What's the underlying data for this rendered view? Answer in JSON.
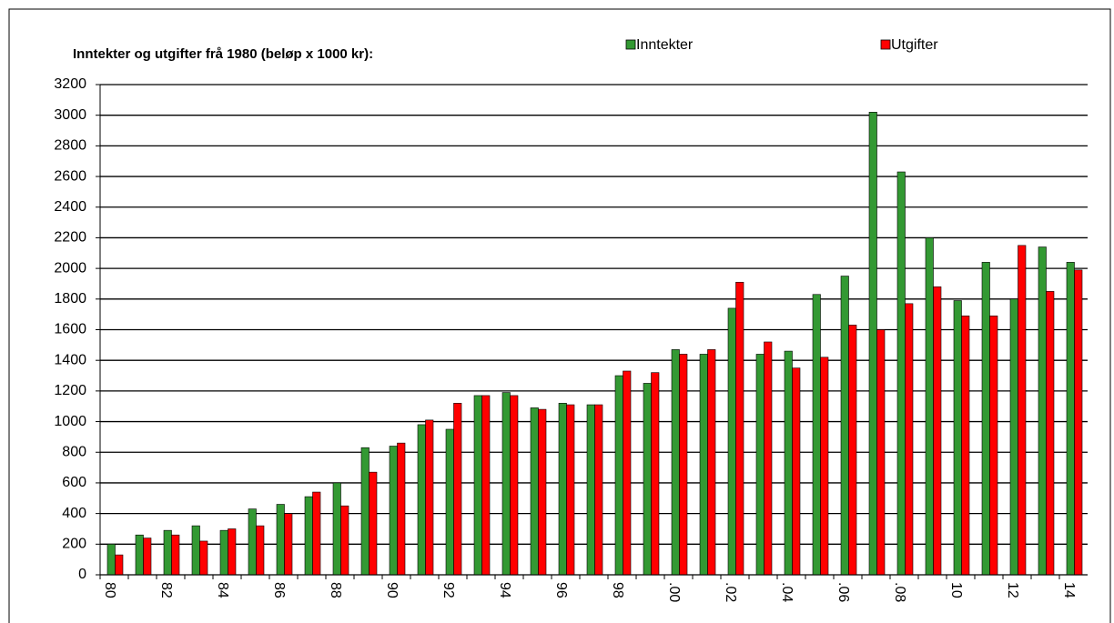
{
  "chart_data": {
    "type": "bar",
    "title": "Inntekter og utgifter frå 1980 (beløp x 1000 kr):",
    "categories": [
      "80",
      null,
      "82",
      null,
      "84",
      null,
      "86",
      null,
      "88",
      null,
      "90",
      null,
      "92",
      null,
      "94",
      null,
      "96",
      null,
      "98",
      null,
      ".00",
      null,
      ".02",
      null,
      ".04",
      null,
      ".06",
      null,
      ".08",
      null,
      "10",
      null,
      "12",
      null,
      "14"
    ],
    "series": [
      {
        "name": "Inntekter",
        "color": "#339933",
        "values": [
          200,
          260,
          290,
          320,
          290,
          430,
          460,
          510,
          600,
          830,
          840,
          980,
          950,
          1170,
          1190,
          1090,
          1120,
          1110,
          1300,
          1250,
          1470,
          1440,
          1740,
          1440,
          1460,
          1830,
          1950,
          3020,
          2630,
          2200,
          1790,
          2040,
          1800,
          2140,
          2040
        ]
      },
      {
        "name": "Utgifter",
        "color": "#ff0000",
        "values": [
          130,
          240,
          260,
          220,
          300,
          320,
          400,
          540,
          450,
          670,
          860,
          1010,
          1120,
          1170,
          1170,
          1080,
          1110,
          1110,
          1330,
          1320,
          1440,
          1470,
          1910,
          1520,
          1350,
          1420,
          1630,
          1600,
          1770,
          1880,
          1690,
          1690,
          2150,
          1850,
          1990
        ]
      }
    ],
    "ylim": [
      0,
      3200
    ],
    "yticks": [
      0,
      200,
      400,
      600,
      800,
      1000,
      1200,
      1400,
      1600,
      1800,
      2000,
      2200,
      2400,
      2600,
      2800,
      3000,
      3200
    ],
    "grid": true
  }
}
